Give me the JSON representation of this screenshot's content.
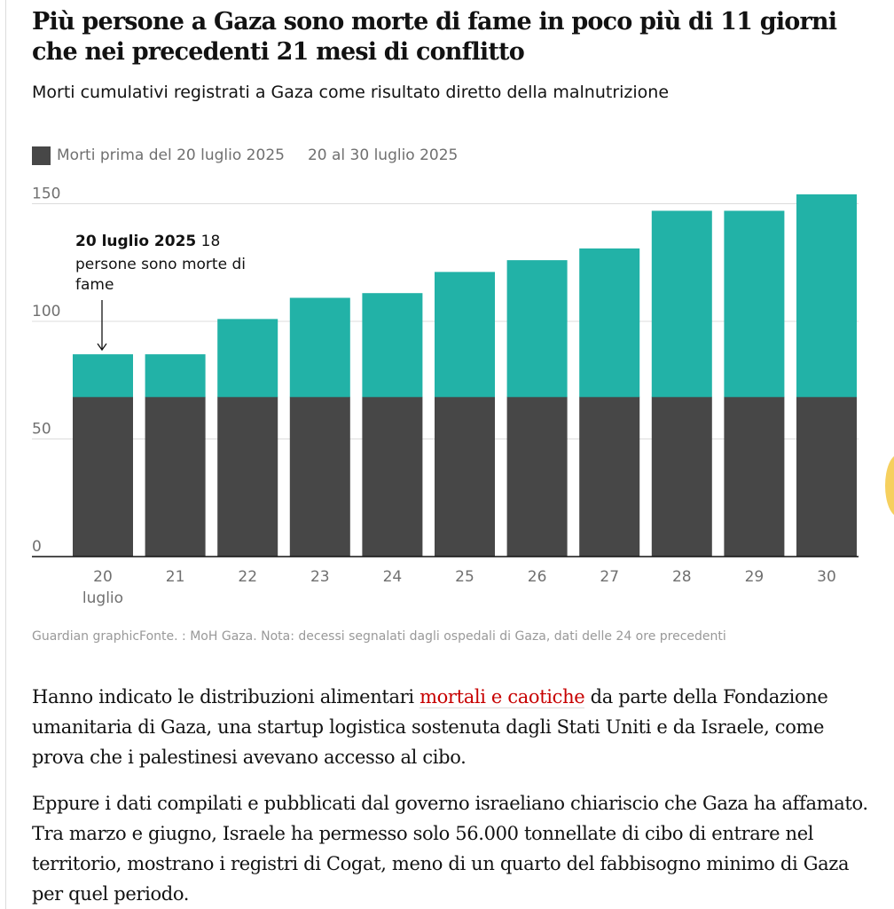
{
  "title": "Più persone a Gaza sono morte di fame in poco più di 11 giorni che nei precedenti 21 mesi di conflitto",
  "subtitle": "Morti cumulativi registrati a Gaza come risultato diretto della malnutrizione",
  "legend": {
    "before_label": "Morti prima del 20 luglio 2025",
    "after_label": "20 al 30 luglio 2025"
  },
  "source": "Guardian graphicFonte. : MoH Gaza. Nota: decessi segnalati dagli ospedali di Gaza, dati delle 24 ore precedenti",
  "article": {
    "p1_before": "Hanno indicato le distribuzioni alimentari ",
    "p1_link": "mortali e caotiche",
    "p1_after": " da parte della Fondazione umanitaria di Gaza, una startup logistica sostenuta dagli Stati Uniti e da Israele, come prova che i palestinesi avevano accesso al cibo.",
    "p2": "Eppure i dati compilati e pubblicati dal governo israeliano chiariscio che Gaza ha affamato. Tra marzo e giugno, Israele ha permesso solo 56.000 tonnellate di cibo di entrare nel territorio, mostrano i registri di Cogat, meno di un quarto del fabbisogno minimo di Gaza per quel periodo."
  },
  "colors": {
    "before": "#474747",
    "after": "#22b2a7",
    "link": "#c70000"
  },
  "chart_data": {
    "type": "bar",
    "stacked": true,
    "categories": [
      "20",
      "21",
      "22",
      "23",
      "24",
      "25",
      "26",
      "27",
      "28",
      "29",
      "30"
    ],
    "first_category_sublabel": "luglio",
    "series": [
      {
        "name": "Morti prima del 20 luglio 2025",
        "values": [
          68,
          68,
          68,
          68,
          68,
          68,
          68,
          68,
          68,
          68,
          68
        ]
      },
      {
        "name": "20 al 30 luglio 2025",
        "values": [
          18,
          18,
          33,
          42,
          44,
          53,
          58,
          63,
          79,
          79,
          86
        ]
      }
    ],
    "y_ticks": [
      0,
      50,
      100,
      150
    ],
    "ylim": [
      0,
      150
    ],
    "grid": true,
    "annotation": {
      "category": "20",
      "bold": "20 luglio 2025",
      "text_lines": [
        "18",
        "persone sono morte di",
        "fame"
      ]
    }
  }
}
